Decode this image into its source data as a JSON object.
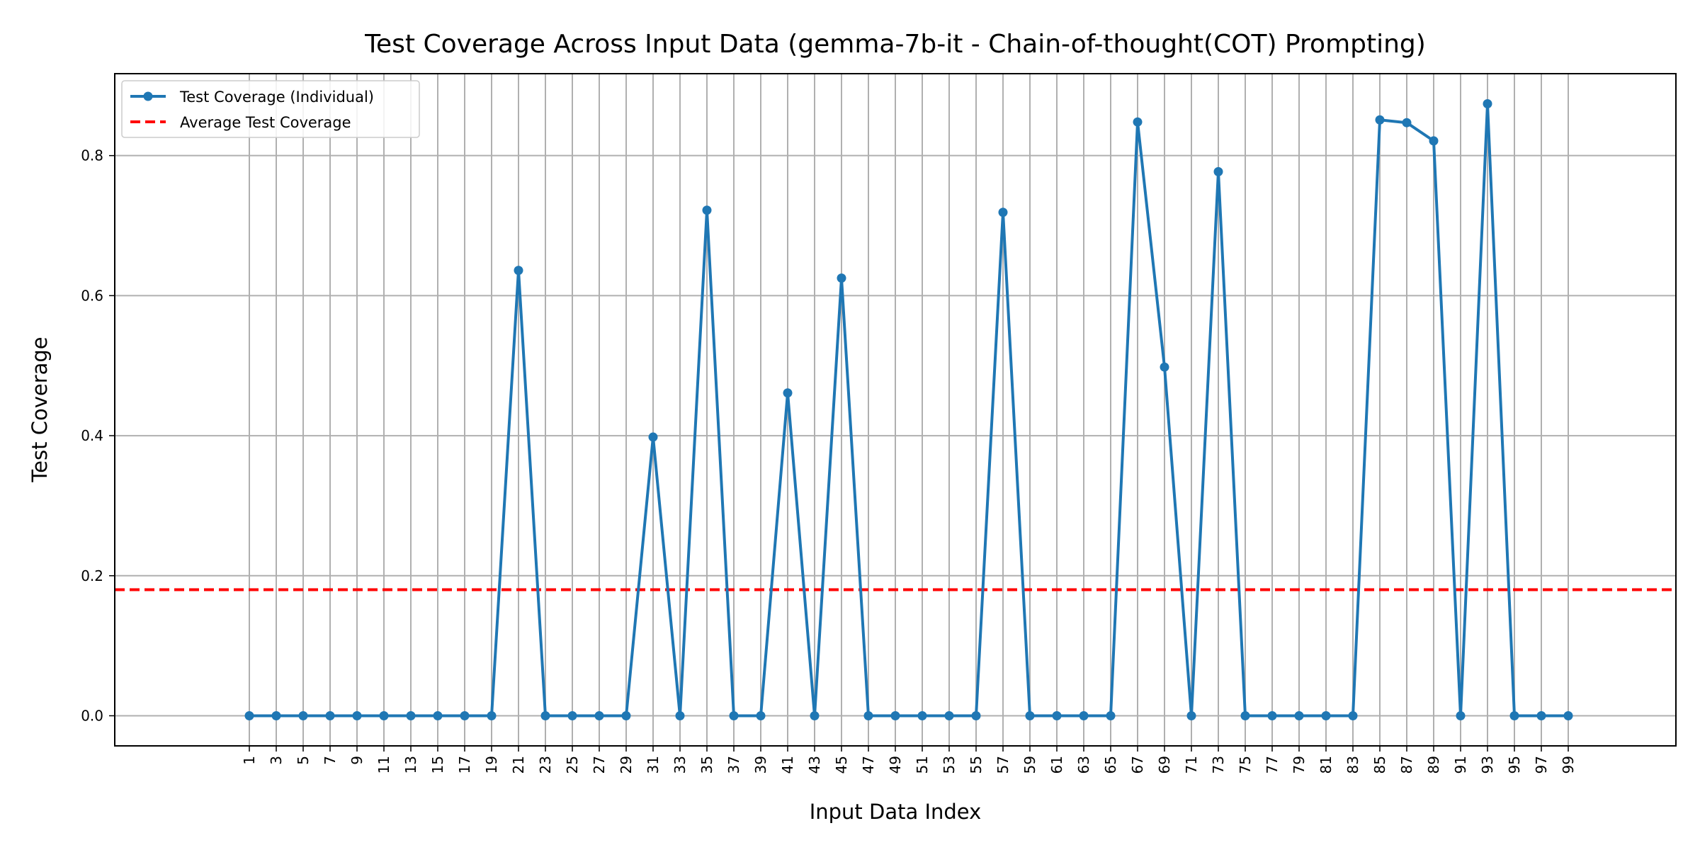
{
  "chart_data": {
    "type": "line",
    "title": "Test Coverage Across Input Data (gemma-7b-it - Chain-of-thought(COT) Prompting)",
    "xlabel": "Input Data Index",
    "ylabel": "Test Coverage",
    "x": [
      1,
      3,
      5,
      7,
      9,
      11,
      13,
      15,
      17,
      19,
      21,
      23,
      25,
      27,
      29,
      31,
      33,
      35,
      37,
      39,
      41,
      43,
      45,
      47,
      49,
      51,
      53,
      55,
      57,
      59,
      61,
      63,
      65,
      67,
      69,
      71,
      73,
      75,
      77,
      79,
      81,
      83,
      85,
      87,
      89,
      91,
      93,
      95,
      97,
      99
    ],
    "xlim": [
      -9,
      107
    ],
    "ylim": [
      -0.043,
      0.917
    ],
    "xticks": [
      1,
      3,
      5,
      7,
      9,
      11,
      13,
      15,
      17,
      19,
      21,
      23,
      25,
      27,
      29,
      31,
      33,
      35,
      37,
      39,
      41,
      43,
      45,
      47,
      49,
      51,
      53,
      55,
      57,
      59,
      61,
      63,
      65,
      67,
      69,
      71,
      73,
      75,
      77,
      79,
      81,
      83,
      85,
      87,
      89,
      91,
      93,
      95,
      97,
      99
    ],
    "yticks": [
      0.0,
      0.2,
      0.4,
      0.6,
      0.8
    ],
    "ytick_labels": [
      "0.0",
      "0.2",
      "0.4",
      "0.6",
      "0.8"
    ],
    "grid": true,
    "legend_position": "top-left",
    "series": [
      {
        "name": "Test Coverage (Individual)",
        "color": "#1f77b4",
        "style": "solid-with-markers",
        "values": [
          0,
          0,
          0,
          0,
          0,
          0,
          0,
          0,
          0,
          0,
          0.636,
          0,
          0,
          0,
          0,
          0.398,
          0,
          0.722,
          0,
          0,
          0.461,
          0,
          0.625,
          0,
          0,
          0,
          0,
          0,
          0.719,
          0,
          0,
          0,
          0,
          0.848,
          0.498,
          0,
          0.777,
          0,
          0,
          0,
          0,
          0,
          0.851,
          0.847,
          0.821,
          0,
          0.874,
          0,
          0,
          0
        ]
      },
      {
        "name": "Average Test Coverage",
        "color": "#ff0000",
        "style": "dashed",
        "value": 0.18
      }
    ]
  }
}
